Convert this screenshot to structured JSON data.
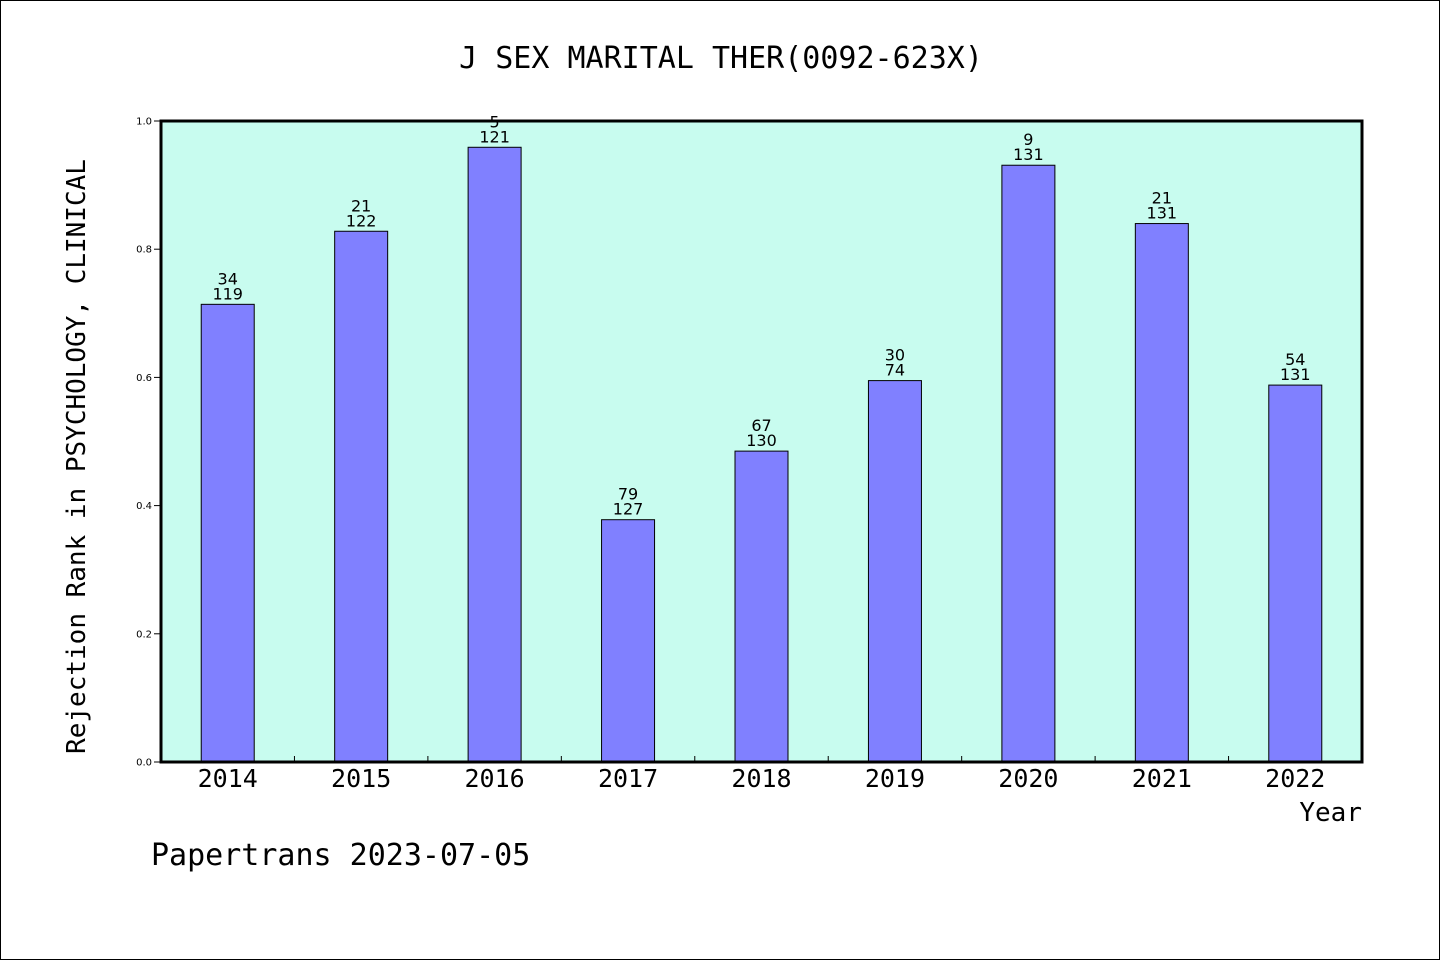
{
  "chart_data": {
    "type": "bar",
    "title": "J SEX MARITAL THER(0092-623X)",
    "xlabel": "Year",
    "ylabel": "Rejection Rank in PSYCHOLOGY, CLINICAL",
    "ylim": [
      0,
      1.0
    ],
    "yticks": [
      "0.0",
      "0.2",
      "0.4",
      "0.6",
      "0.8",
      "1.0"
    ],
    "grid": false,
    "categories": [
      "2014",
      "2015",
      "2016",
      "2017",
      "2018",
      "2019",
      "2020",
      "2021",
      "2022"
    ],
    "values": [
      0.714,
      0.828,
      0.959,
      0.378,
      0.485,
      0.595,
      0.931,
      0.84,
      0.588
    ],
    "rank": [
      "34",
      "21",
      "5",
      "79",
      "67",
      "30",
      "9",
      "21",
      "54"
    ],
    "total": [
      "119",
      "122",
      "121",
      "127",
      "130",
      "74",
      "131",
      "131",
      "131"
    ],
    "colors": {
      "plot_background": "#c8fcef",
      "bar_fill": "#8080ff",
      "bar_edge": "#000000"
    }
  },
  "footer": "Papertrans 2023-07-05"
}
